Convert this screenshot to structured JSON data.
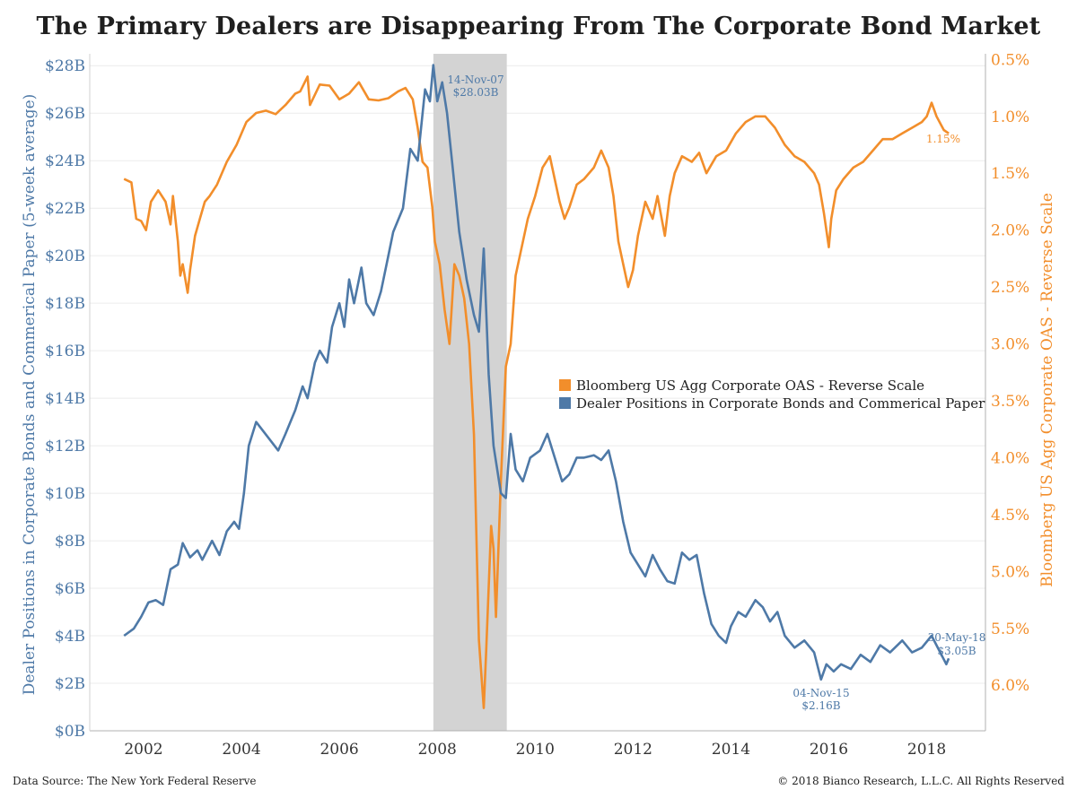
{
  "title": "The Primary Dealers are Disappearing From The Corporate Bond Market",
  "footer": {
    "source": "Data Source: The New York Federal Reserve",
    "copyright": "© 2018 Bianco Research, L.L.C. All Rights Reserved"
  },
  "colors": {
    "dealer": "#4e79a7",
    "oas": "#f28e2b",
    "recession": "#d3d3d3"
  },
  "chart_data": {
    "type": "line",
    "title": "The Primary Dealers are Disappearing From The Corporate Bond Market",
    "ylabel": "Dealer Positions in Corporate Bonds and Commerical Paper (5-week average)",
    "y2label": "Bloomberg US Agg Corporate OAS - Reverse Scale",
    "y_ticks": [
      "$0B",
      "$2B",
      "$4B",
      "$6B",
      "$8B",
      "$10B",
      "$12B",
      "$14B",
      "$16B",
      "$18B",
      "$20B",
      "$22B",
      "$24B",
      "$26B",
      "$28B"
    ],
    "y2_ticks": [
      "0.5%",
      "1.0%",
      "1.5%",
      "2.0%",
      "2.5%",
      "3.0%",
      "3.5%",
      "4.0%",
      "4.5%",
      "5.0%",
      "5.5%",
      "6.0%"
    ],
    "x_ticks": [
      "2002",
      "2004",
      "2006",
      "2008",
      "2010",
      "2012",
      "2014",
      "2016",
      "2018"
    ],
    "ylim": [
      0,
      28.5
    ],
    "y2lim": [
      0.45,
      6.4
    ],
    "y2_reversed": true,
    "xlim": [
      2000.9,
      2019.2
    ],
    "grid": true,
    "legend_position": "center-right",
    "shaded_period": [
      2007.92,
      2009.42
    ],
    "series": [
      {
        "name": "Bloomberg US Agg Corporate OAS - Reverse Scale",
        "axis": "right",
        "points": [
          [
            2001.6,
            1.55
          ],
          [
            2001.75,
            1.58
          ],
          [
            2001.85,
            1.9
          ],
          [
            2001.95,
            1.92
          ],
          [
            2002.05,
            2.0
          ],
          [
            2002.15,
            1.75
          ],
          [
            2002.3,
            1.65
          ],
          [
            2002.45,
            1.75
          ],
          [
            2002.55,
            1.95
          ],
          [
            2002.6,
            1.7
          ],
          [
            2002.7,
            2.1
          ],
          [
            2002.75,
            2.4
          ],
          [
            2002.8,
            2.3
          ],
          [
            2002.9,
            2.55
          ],
          [
            2002.95,
            2.35
          ],
          [
            2003.05,
            2.05
          ],
          [
            2003.15,
            1.9
          ],
          [
            2003.25,
            1.75
          ],
          [
            2003.35,
            1.7
          ],
          [
            2003.5,
            1.6
          ],
          [
            2003.7,
            1.4
          ],
          [
            2003.9,
            1.25
          ],
          [
            2004.1,
            1.05
          ],
          [
            2004.3,
            0.97
          ],
          [
            2004.5,
            0.95
          ],
          [
            2004.7,
            0.98
          ],
          [
            2004.9,
            0.9
          ],
          [
            2005.1,
            0.8
          ],
          [
            2005.2,
            0.78
          ],
          [
            2005.35,
            0.65
          ],
          [
            2005.4,
            0.9
          ],
          [
            2005.6,
            0.72
          ],
          [
            2005.8,
            0.73
          ],
          [
            2006.0,
            0.85
          ],
          [
            2006.2,
            0.8
          ],
          [
            2006.4,
            0.7
          ],
          [
            2006.6,
            0.85
          ],
          [
            2006.8,
            0.86
          ],
          [
            2007.0,
            0.84
          ],
          [
            2007.2,
            0.78
          ],
          [
            2007.35,
            0.75
          ],
          [
            2007.5,
            0.85
          ],
          [
            2007.6,
            1.1
          ],
          [
            2007.7,
            1.4
          ],
          [
            2007.8,
            1.45
          ],
          [
            2007.9,
            1.8
          ],
          [
            2007.95,
            2.1
          ],
          [
            2008.05,
            2.3
          ],
          [
            2008.15,
            2.7
          ],
          [
            2008.25,
            3.0
          ],
          [
            2008.35,
            2.3
          ],
          [
            2008.45,
            2.4
          ],
          [
            2008.55,
            2.6
          ],
          [
            2008.65,
            3.0
          ],
          [
            2008.75,
            3.8
          ],
          [
            2008.85,
            5.6
          ],
          [
            2008.9,
            5.9
          ],
          [
            2008.95,
            6.2
          ],
          [
            2009.0,
            5.7
          ],
          [
            2009.1,
            4.6
          ],
          [
            2009.15,
            4.8
          ],
          [
            2009.2,
            5.4
          ],
          [
            2009.3,
            4.2
          ],
          [
            2009.4,
            3.2
          ],
          [
            2009.5,
            3.0
          ],
          [
            2009.6,
            2.4
          ],
          [
            2009.7,
            2.2
          ],
          [
            2009.85,
            1.9
          ],
          [
            2010.0,
            1.7
          ],
          [
            2010.15,
            1.45
          ],
          [
            2010.3,
            1.35
          ],
          [
            2010.5,
            1.75
          ],
          [
            2010.6,
            1.9
          ],
          [
            2010.7,
            1.8
          ],
          [
            2010.85,
            1.6
          ],
          [
            2011.0,
            1.55
          ],
          [
            2011.2,
            1.45
          ],
          [
            2011.35,
            1.3
          ],
          [
            2011.5,
            1.45
          ],
          [
            2011.6,
            1.7
          ],
          [
            2011.7,
            2.1
          ],
          [
            2011.8,
            2.3
          ],
          [
            2011.9,
            2.5
          ],
          [
            2012.0,
            2.35
          ],
          [
            2012.1,
            2.05
          ],
          [
            2012.25,
            1.75
          ],
          [
            2012.4,
            1.9
          ],
          [
            2012.5,
            1.7
          ],
          [
            2012.65,
            2.05
          ],
          [
            2012.75,
            1.7
          ],
          [
            2012.85,
            1.5
          ],
          [
            2013.0,
            1.35
          ],
          [
            2013.2,
            1.4
          ],
          [
            2013.35,
            1.32
          ],
          [
            2013.5,
            1.5
          ],
          [
            2013.7,
            1.35
          ],
          [
            2013.9,
            1.3
          ],
          [
            2014.1,
            1.15
          ],
          [
            2014.3,
            1.05
          ],
          [
            2014.5,
            1.0
          ],
          [
            2014.7,
            1.0
          ],
          [
            2014.9,
            1.1
          ],
          [
            2015.1,
            1.25
          ],
          [
            2015.3,
            1.35
          ],
          [
            2015.5,
            1.4
          ],
          [
            2015.7,
            1.5
          ],
          [
            2015.8,
            1.6
          ],
          [
            2015.9,
            1.85
          ],
          [
            2016.0,
            2.15
          ],
          [
            2016.05,
            1.9
          ],
          [
            2016.15,
            1.65
          ],
          [
            2016.3,
            1.55
          ],
          [
            2016.5,
            1.45
          ],
          [
            2016.7,
            1.4
          ],
          [
            2016.9,
            1.3
          ],
          [
            2017.1,
            1.2
          ],
          [
            2017.3,
            1.2
          ],
          [
            2017.5,
            1.15
          ],
          [
            2017.7,
            1.1
          ],
          [
            2017.9,
            1.05
          ],
          [
            2018.0,
            1.0
          ],
          [
            2018.1,
            0.88
          ],
          [
            2018.2,
            1.0
          ],
          [
            2018.35,
            1.12
          ],
          [
            2018.45,
            1.15
          ]
        ]
      },
      {
        "name": "Dealer Positions in Corporate Bonds and Commerical Paper",
        "axis": "left",
        "points": [
          [
            2001.6,
            4.0
          ],
          [
            2001.8,
            4.3
          ],
          [
            2001.95,
            4.8
          ],
          [
            2002.1,
            5.4
          ],
          [
            2002.25,
            5.5
          ],
          [
            2002.4,
            5.3
          ],
          [
            2002.55,
            6.8
          ],
          [
            2002.7,
            7.0
          ],
          [
            2002.8,
            7.9
          ],
          [
            2002.95,
            7.3
          ],
          [
            2003.1,
            7.6
          ],
          [
            2003.2,
            7.2
          ],
          [
            2003.4,
            8.0
          ],
          [
            2003.55,
            7.4
          ],
          [
            2003.7,
            8.4
          ],
          [
            2003.85,
            8.8
          ],
          [
            2003.95,
            8.5
          ],
          [
            2004.05,
            10.0
          ],
          [
            2004.15,
            12.0
          ],
          [
            2004.3,
            13.0
          ],
          [
            2004.45,
            12.6
          ],
          [
            2004.6,
            12.2
          ],
          [
            2004.75,
            11.8
          ],
          [
            2004.9,
            12.5
          ],
          [
            2005.1,
            13.5
          ],
          [
            2005.25,
            14.5
          ],
          [
            2005.35,
            14.0
          ],
          [
            2005.5,
            15.5
          ],
          [
            2005.6,
            16.0
          ],
          [
            2005.75,
            15.5
          ],
          [
            2005.85,
            17.0
          ],
          [
            2006.0,
            18.0
          ],
          [
            2006.1,
            17.0
          ],
          [
            2006.2,
            19.0
          ],
          [
            2006.3,
            18.0
          ],
          [
            2006.45,
            19.5
          ],
          [
            2006.55,
            18.0
          ],
          [
            2006.7,
            17.5
          ],
          [
            2006.85,
            18.5
          ],
          [
            2007.0,
            20.0
          ],
          [
            2007.1,
            21.0
          ],
          [
            2007.2,
            21.5
          ],
          [
            2007.3,
            22.0
          ],
          [
            2007.45,
            24.5
          ],
          [
            2007.6,
            24.0
          ],
          [
            2007.75,
            27.0
          ],
          [
            2007.85,
            26.5
          ],
          [
            2007.92,
            28.03
          ],
          [
            2008.0,
            26.5
          ],
          [
            2008.1,
            27.3
          ],
          [
            2008.2,
            26.0
          ],
          [
            2008.3,
            24.0
          ],
          [
            2008.45,
            21.0
          ],
          [
            2008.6,
            19.0
          ],
          [
            2008.75,
            17.5
          ],
          [
            2008.85,
            16.8
          ],
          [
            2008.95,
            20.3
          ],
          [
            2009.05,
            15.0
          ],
          [
            2009.15,
            12.0
          ],
          [
            2009.3,
            10.0
          ],
          [
            2009.4,
            9.8
          ],
          [
            2009.5,
            12.5
          ],
          [
            2009.6,
            11.0
          ],
          [
            2009.75,
            10.5
          ],
          [
            2009.9,
            11.5
          ],
          [
            2010.1,
            11.8
          ],
          [
            2010.25,
            12.5
          ],
          [
            2010.4,
            11.5
          ],
          [
            2010.55,
            10.5
          ],
          [
            2010.7,
            10.8
          ],
          [
            2010.85,
            11.5
          ],
          [
            2011.0,
            11.5
          ],
          [
            2011.2,
            11.6
          ],
          [
            2011.35,
            11.4
          ],
          [
            2011.5,
            11.8
          ],
          [
            2011.65,
            10.5
          ],
          [
            2011.8,
            8.8
          ],
          [
            2011.95,
            7.5
          ],
          [
            2012.1,
            7.0
          ],
          [
            2012.25,
            6.5
          ],
          [
            2012.4,
            7.4
          ],
          [
            2012.55,
            6.8
          ],
          [
            2012.7,
            6.3
          ],
          [
            2012.85,
            6.2
          ],
          [
            2013.0,
            7.5
          ],
          [
            2013.15,
            7.2
          ],
          [
            2013.3,
            7.4
          ],
          [
            2013.45,
            5.8
          ],
          [
            2013.6,
            4.5
          ],
          [
            2013.75,
            4.0
          ],
          [
            2013.9,
            3.7
          ],
          [
            2014.0,
            4.4
          ],
          [
            2014.15,
            5.0
          ],
          [
            2014.3,
            4.8
          ],
          [
            2014.5,
            5.5
          ],
          [
            2014.65,
            5.2
          ],
          [
            2014.8,
            4.6
          ],
          [
            2014.95,
            5.0
          ],
          [
            2015.1,
            4.0
          ],
          [
            2015.3,
            3.5
          ],
          [
            2015.5,
            3.8
          ],
          [
            2015.7,
            3.3
          ],
          [
            2015.84,
            2.16
          ],
          [
            2015.95,
            2.8
          ],
          [
            2016.1,
            2.5
          ],
          [
            2016.25,
            2.8
          ],
          [
            2016.45,
            2.6
          ],
          [
            2016.65,
            3.2
          ],
          [
            2016.85,
            2.9
          ],
          [
            2017.05,
            3.6
          ],
          [
            2017.25,
            3.3
          ],
          [
            2017.5,
            3.8
          ],
          [
            2017.7,
            3.3
          ],
          [
            2017.9,
            3.5
          ],
          [
            2018.1,
            4.0
          ],
          [
            2018.25,
            3.4
          ],
          [
            2018.4,
            2.8
          ],
          [
            2018.45,
            3.05
          ]
        ]
      }
    ]
  },
  "annotations": {
    "peak_date": "14-Nov-07",
    "peak_value": "$28.03B",
    "low_date": "04-Nov-15",
    "low_value": "$2.16B",
    "last_date": "30-May-18",
    "last_value": "$3.05B",
    "oas_last": "1.15%"
  },
  "legend": [
    "Bloomberg US Agg Corporate OAS - Reverse Scale",
    "Dealer Positions in Corporate Bonds and Commerical Paper"
  ]
}
